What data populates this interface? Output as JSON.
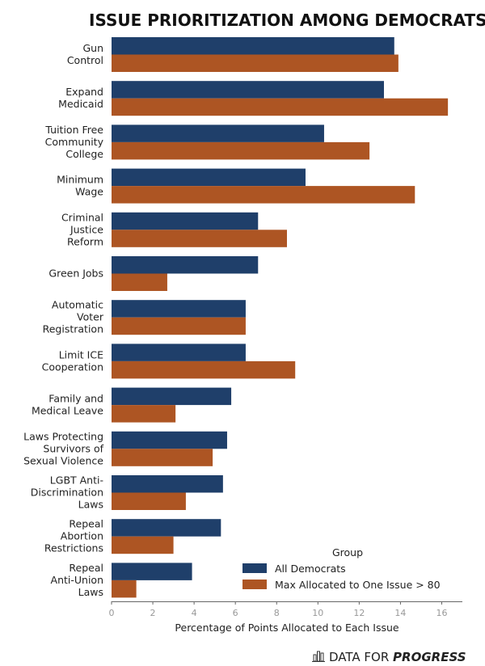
{
  "chart_data": {
    "type": "bar",
    "orientation": "horizontal",
    "title": "ISSUE PRIORITIZATION AMONG DEMOCRATS",
    "xlabel": "Percentage of Points Allocated to Each Issue",
    "ylabel": "",
    "xlim": [
      0,
      17
    ],
    "xticks": [
      0,
      2,
      4,
      6,
      8,
      10,
      12,
      14,
      16
    ],
    "categories": [
      "Gun\nControl",
      "Expand\nMedicaid",
      "Tuition Free\nCommunity\nCollege",
      "Minimum\nWage",
      "Criminal\nJustice\nReform",
      "Green Jobs",
      "Automatic\nVoter\nRegistration",
      "Limit ICE\nCooperation",
      "Family and\nMedical Leave",
      "Laws Protecting\nSurvivors of\nSexual Violence",
      "LGBT Anti-\nDiscrimination\nLaws",
      "Repeal\nAbortion\nRestrictions",
      "Repeal\nAnti-Union\nLaws"
    ],
    "series": [
      {
        "name": "All Democrats",
        "color": "#1f3f6a",
        "values": [
          13.7,
          13.2,
          10.3,
          9.4,
          7.1,
          7.1,
          6.5,
          6.5,
          5.8,
          5.6,
          5.4,
          5.3,
          3.9
        ]
      },
      {
        "name": "Max Allocated to One Issue > 80",
        "color": "#ad5523",
        "values": [
          13.9,
          16.3,
          12.5,
          14.7,
          8.5,
          2.7,
          6.5,
          8.9,
          3.1,
          4.9,
          3.6,
          3.0,
          1.2
        ]
      }
    ],
    "legend": {
      "title": "Group",
      "position": "bottom-right"
    }
  },
  "brand": {
    "prefix": "DATA FOR ",
    "emphasis": "PROGRESS",
    "icon": "bar-chart-icon"
  }
}
